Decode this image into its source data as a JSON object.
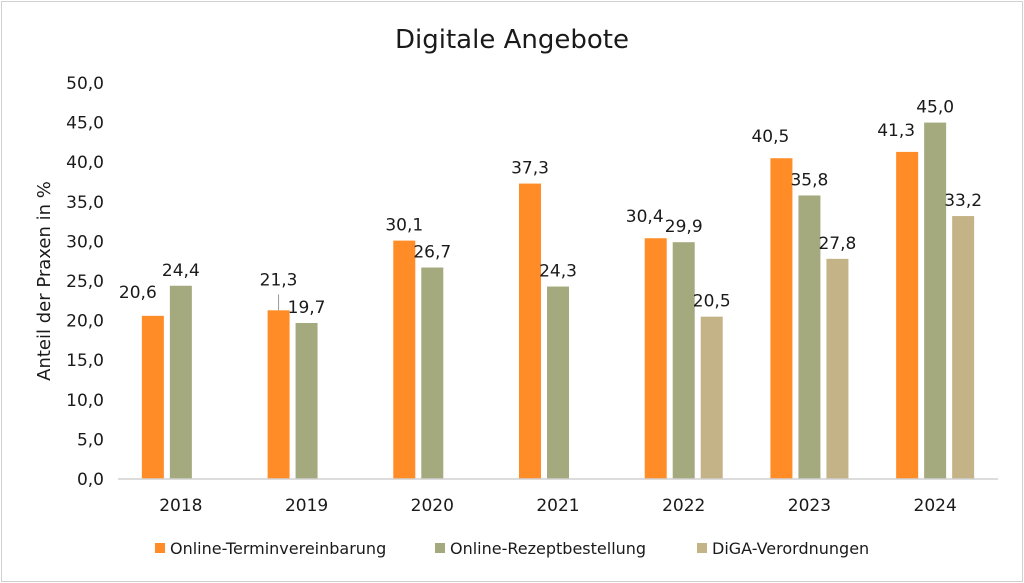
{
  "chart_data": {
    "type": "bar",
    "title": "Digitale Angebote",
    "xlabel": "",
    "ylabel": "Anteil der Praxen in %",
    "ylim": [
      0,
      50
    ],
    "yticks": [
      "0,0",
      "5,0",
      "10,0",
      "15,0",
      "20,0",
      "25,0",
      "30,0",
      "35,0",
      "40,0",
      "45,0",
      "50,0"
    ],
    "grid": false,
    "legend_position": "bottom",
    "categories": [
      "2018",
      "2019",
      "2020",
      "2021",
      "2022",
      "2023",
      "2024"
    ],
    "series": [
      {
        "name": "Online-Terminvereinbarung",
        "color": "#FF8C26",
        "values": [
          20.6,
          21.3,
          30.1,
          37.3,
          30.4,
          40.5,
          41.3
        ],
        "labels": [
          "20,6",
          "21,3",
          "30,1",
          "37,3",
          "30,4",
          "40,5",
          "41,3"
        ]
      },
      {
        "name": "Online-Rezeptbestellung",
        "color": "#A5AA7E",
        "values": [
          24.4,
          19.7,
          26.7,
          24.3,
          29.9,
          35.8,
          45.0
        ],
        "labels": [
          "24,4",
          "19,7",
          "26,7",
          "24,3",
          "29,9",
          "35,8",
          "45,0"
        ]
      },
      {
        "name": "DiGA-Verordnungen",
        "color": "#C4B386",
        "values": [
          null,
          null,
          null,
          null,
          20.5,
          27.8,
          33.2
        ],
        "labels": [
          null,
          null,
          null,
          null,
          "20,5",
          "27,8",
          "33,2"
        ]
      }
    ]
  }
}
